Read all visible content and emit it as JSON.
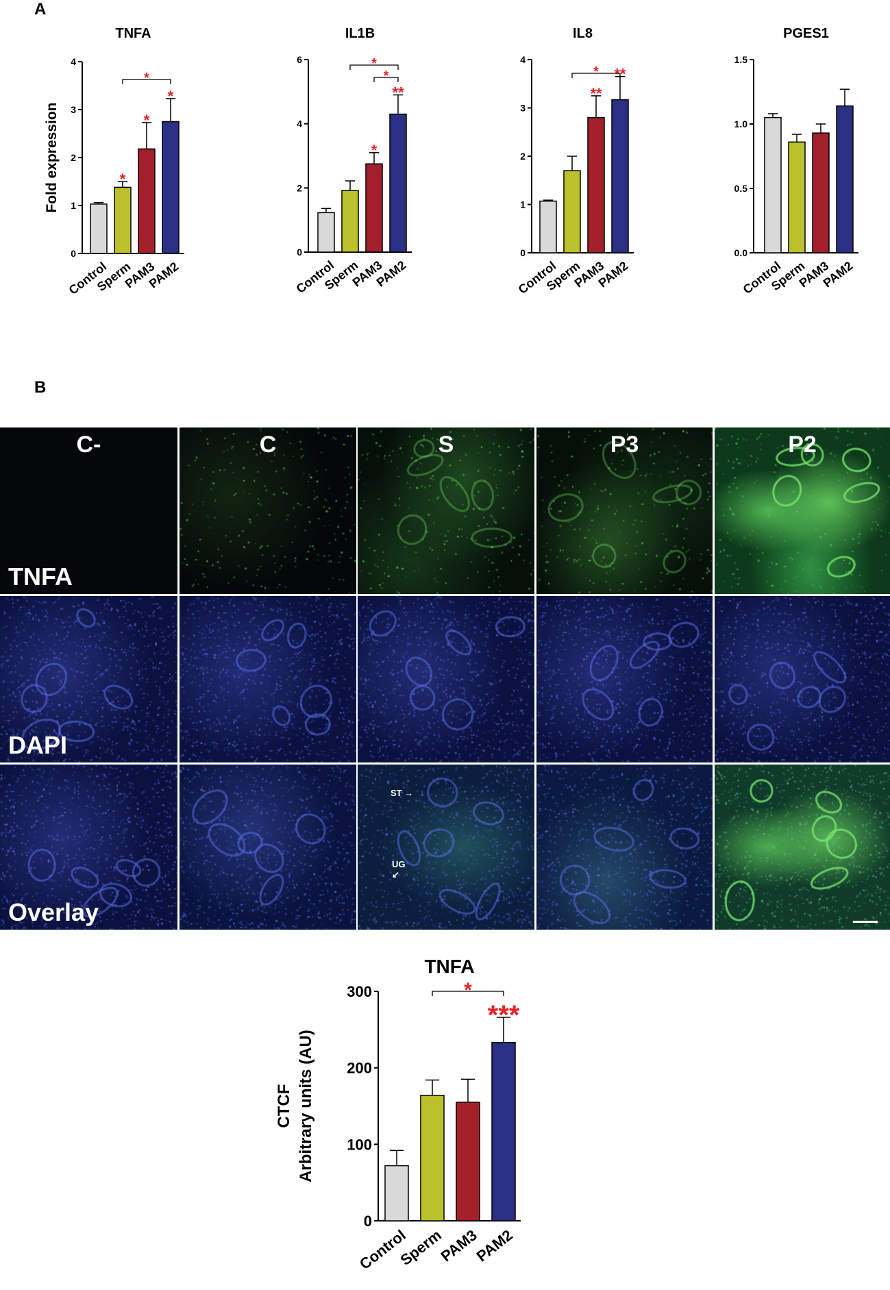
{
  "panel_a_label": "A",
  "panel_b_label": "B",
  "colors": {
    "Control": "#d9d9d9",
    "Sperm": "#bcc22c",
    "PAM3": "#a3202a",
    "PAM2": "#2b2f86",
    "significance": "#e8202a"
  },
  "chart_data": [
    {
      "type": "bar",
      "title": "TNFA",
      "ylabel": "Fold expression",
      "categories": [
        "Control",
        "Sperm",
        "PAM3",
        "PAM2"
      ],
      "values": [
        1.03,
        1.38,
        2.18,
        2.75
      ],
      "errors": [
        0.03,
        0.12,
        0.55,
        0.48
      ],
      "ylim": [
        0,
        4
      ],
      "yticks": [
        "0",
        "1",
        "2",
        "3",
        "4"
      ],
      "stars": [
        "",
        "*",
        "*",
        "*"
      ],
      "brackets": [
        {
          "from": 1,
          "to": 3,
          "label": "*"
        }
      ]
    },
    {
      "type": "bar",
      "title": "IL1B",
      "ylabel": "",
      "categories": [
        "Control",
        "Sperm",
        "PAM3",
        "PAM2"
      ],
      "values": [
        1.23,
        1.92,
        2.75,
        4.3
      ],
      "errors": [
        0.13,
        0.3,
        0.35,
        0.6
      ],
      "ylim": [
        0,
        6
      ],
      "yticks": [
        "0",
        "2",
        "4",
        "6"
      ],
      "stars": [
        "",
        "",
        "*",
        "**"
      ],
      "brackets": [
        {
          "from": 1,
          "to": 3,
          "label": "*"
        },
        {
          "from": 2,
          "to": 3,
          "label": "*"
        }
      ]
    },
    {
      "type": "bar",
      "title": "IL8",
      "ylabel": "",
      "categories": [
        "Control",
        "Sperm",
        "PAM3",
        "PAM2"
      ],
      "values": [
        1.07,
        1.7,
        2.8,
        3.17
      ],
      "errors": [
        0.02,
        0.3,
        0.45,
        0.48
      ],
      "ylim": [
        0,
        4
      ],
      "yticks": [
        "0",
        "1",
        "2",
        "3",
        "4"
      ],
      "stars": [
        "",
        "",
        "**",
        "**"
      ],
      "brackets": [
        {
          "from": 1,
          "to": 3,
          "label": "*"
        }
      ]
    },
    {
      "type": "bar",
      "title": "PGES1",
      "ylabel": "",
      "categories": [
        "Control",
        "Sperm",
        "PAM3",
        "PAM2"
      ],
      "values": [
        1.05,
        0.86,
        0.93,
        1.14
      ],
      "errors": [
        0.03,
        0.06,
        0.07,
        0.13
      ],
      "ylim": [
        0,
        1.5
      ],
      "yticks": [
        "0.0",
        "0.5",
        "1.0",
        "1.5"
      ],
      "stars": [
        "",
        "",
        "",
        ""
      ],
      "brackets": []
    },
    {
      "type": "bar",
      "title": "TNFA",
      "ylabel": "CTCF",
      "ylabel2": "Arbitrary units (AU)",
      "categories": [
        "Control",
        "Sperm",
        "PAM3",
        "PAM2"
      ],
      "values": [
        72,
        164,
        155,
        233
      ],
      "errors": [
        20,
        20,
        30,
        33
      ],
      "ylim": [
        0,
        300
      ],
      "yticks": [
        "0",
        "100",
        "200",
        "300"
      ],
      "stars": [
        "",
        "",
        "",
        "***"
      ],
      "brackets": [
        {
          "from": 1,
          "to": 3,
          "label": "*"
        }
      ]
    }
  ],
  "micrograph": {
    "columns": [
      "C-",
      "C",
      "S",
      "P3",
      "P2"
    ],
    "rows": [
      "TNFA",
      "DAPI",
      "Overlay"
    ],
    "annotations": {
      "st": "ST",
      "ug": "UG"
    }
  }
}
